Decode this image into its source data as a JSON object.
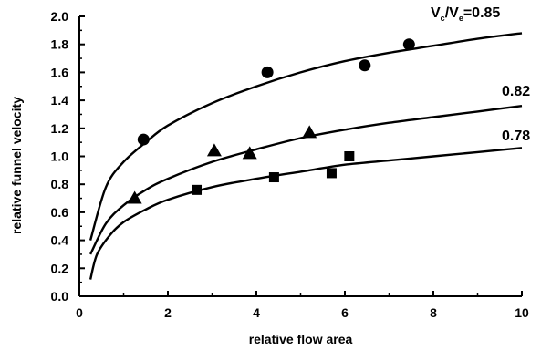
{
  "chart_data": {
    "type": "scatter",
    "xlabel": "relative flow area",
    "ylabel": "relative funnel velocity",
    "xlim": [
      0,
      10
    ],
    "ylim": [
      0,
      2.0
    ],
    "x_ticks": [
      "0",
      "2",
      "4",
      "6",
      "8",
      "10"
    ],
    "y_ticks": [
      "0.0",
      "0.2",
      "0.4",
      "0.6",
      "0.8",
      "1.0",
      "1.2",
      "1.4",
      "1.6",
      "1.8",
      "2.0"
    ],
    "grid": false,
    "series": [
      {
        "name": "0.85",
        "label_prefix": "V",
        "marker": "circle",
        "points": [
          {
            "x": 1.45,
            "y": 1.12
          },
          {
            "x": 4.25,
            "y": 1.6
          },
          {
            "x": 6.45,
            "y": 1.65
          },
          {
            "x": 7.45,
            "y": 1.8
          }
        ],
        "curve": [
          {
            "x": 0.25,
            "y": 0.4
          },
          {
            "x": 0.6,
            "y": 0.78
          },
          {
            "x": 1.0,
            "y": 0.96
          },
          {
            "x": 1.5,
            "y": 1.1
          },
          {
            "x": 2.0,
            "y": 1.22
          },
          {
            "x": 3.0,
            "y": 1.38
          },
          {
            "x": 4.0,
            "y": 1.5
          },
          {
            "x": 5.0,
            "y": 1.6
          },
          {
            "x": 6.0,
            "y": 1.68
          },
          {
            "x": 7.0,
            "y": 1.74
          },
          {
            "x": 8.0,
            "y": 1.79
          },
          {
            "x": 9.0,
            "y": 1.84
          },
          {
            "x": 10.0,
            "y": 1.88
          }
        ]
      },
      {
        "name": "0.82",
        "marker": "triangle",
        "points": [
          {
            "x": 1.25,
            "y": 0.7
          },
          {
            "x": 3.05,
            "y": 1.04
          },
          {
            "x": 3.85,
            "y": 1.02
          },
          {
            "x": 5.2,
            "y": 1.17
          }
        ],
        "curve": [
          {
            "x": 0.25,
            "y": 0.3
          },
          {
            "x": 0.6,
            "y": 0.52
          },
          {
            "x": 1.0,
            "y": 0.65
          },
          {
            "x": 1.5,
            "y": 0.76
          },
          {
            "x": 2.0,
            "y": 0.84
          },
          {
            "x": 3.0,
            "y": 0.96
          },
          {
            "x": 4.0,
            "y": 1.05
          },
          {
            "x": 5.0,
            "y": 1.13
          },
          {
            "x": 6.0,
            "y": 1.19
          },
          {
            "x": 7.0,
            "y": 1.24
          },
          {
            "x": 8.0,
            "y": 1.28
          },
          {
            "x": 9.0,
            "y": 1.32
          },
          {
            "x": 10.0,
            "y": 1.36
          }
        ]
      },
      {
        "name": "0.78",
        "marker": "square",
        "points": [
          {
            "x": 2.65,
            "y": 0.76
          },
          {
            "x": 4.4,
            "y": 0.85
          },
          {
            "x": 5.7,
            "y": 0.88
          },
          {
            "x": 6.1,
            "y": 1.0
          }
        ],
        "curve": [
          {
            "x": 0.25,
            "y": 0.12
          },
          {
            "x": 0.4,
            "y": 0.3
          },
          {
            "x": 0.7,
            "y": 0.44
          },
          {
            "x": 1.0,
            "y": 0.53
          },
          {
            "x": 1.5,
            "y": 0.62
          },
          {
            "x": 2.0,
            "y": 0.69
          },
          {
            "x": 3.0,
            "y": 0.78
          },
          {
            "x": 4.0,
            "y": 0.84
          },
          {
            "x": 5.0,
            "y": 0.89
          },
          {
            "x": 6.0,
            "y": 0.94
          },
          {
            "x": 7.0,
            "y": 0.97
          },
          {
            "x": 8.0,
            "y": 1.0
          },
          {
            "x": 9.0,
            "y": 1.03
          },
          {
            "x": 10.0,
            "y": 1.06
          }
        ]
      }
    ]
  }
}
